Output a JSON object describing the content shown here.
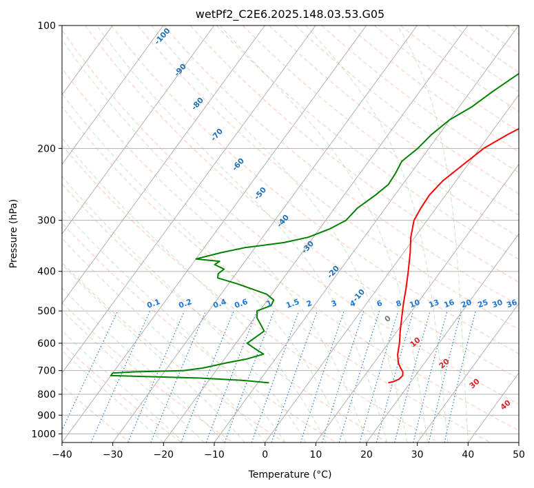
{
  "chart_data": {
    "type": "line",
    "subtype": "skew-t log-p diagram",
    "title": "wetPf2_C2E6.2025.148.03.53.G05",
    "xlabel": "Temperature (°C)",
    "ylabel": "Pressure (hPa)",
    "xlim": [
      -40,
      50
    ],
    "ylim": [
      1050,
      100
    ],
    "yscale": "log",
    "x_ticks": [
      -40,
      -30,
      -20,
      -10,
      0,
      10,
      20,
      30,
      40,
      50
    ],
    "y_ticks": [
      100,
      200,
      300,
      400,
      500,
      600,
      700,
      800,
      900,
      1000
    ],
    "grid": true,
    "colors": {
      "temperature": "#ff0000",
      "dewpoint": "#008000",
      "dry_adiabat": "#ff9f80",
      "moist_adiabat": "#a0d0a0",
      "mixing_ratio": "#1f77d4",
      "isotherm_label": "#1f6fb4",
      "theta_e_label": "#d62728",
      "isotherm": "#b0b0b0"
    },
    "isotherm_labels": [
      "-100",
      "-90",
      "-80",
      "-70",
      "-60",
      "-50",
      "-40",
      "-30",
      "-20",
      "-10"
    ],
    "mixing_ratio_labels": [
      "0.1",
      "0.2",
      "0.4",
      "0.6",
      "1",
      "1.5",
      "2",
      "3",
      "4",
      "6",
      "8",
      "10",
      "13",
      "16",
      "20",
      "25",
      "30",
      "36"
    ],
    "theta_e_labels": [
      "0",
      "10",
      "20",
      "30",
      "40"
    ],
    "series": [
      {
        "role": "temperature",
        "points": [
          {
            "p": 750,
            "t": 15.7
          },
          {
            "p": 745,
            "t": 16.5
          },
          {
            "p": 735,
            "t": 17.3
          },
          {
            "p": 720,
            "t": 17.5
          },
          {
            "p": 705,
            "t": 17.0
          },
          {
            "p": 690,
            "t": 16.0
          },
          {
            "p": 670,
            "t": 14.8
          },
          {
            "p": 640,
            "t": 13.5
          },
          {
            "p": 600,
            "t": 12.2
          },
          {
            "p": 560,
            "t": 10.6
          },
          {
            "p": 520,
            "t": 9.0
          },
          {
            "p": 480,
            "t": 7.3
          },
          {
            "p": 440,
            "t": 5.6
          },
          {
            "p": 400,
            "t": 3.6
          },
          {
            "p": 360,
            "t": 1.3
          },
          {
            "p": 330,
            "t": -0.8
          },
          {
            "p": 300,
            "t": -2.6
          },
          {
            "p": 280,
            "t": -3.0
          },
          {
            "p": 260,
            "t": -3.2
          },
          {
            "p": 240,
            "t": -2.6
          },
          {
            "p": 220,
            "t": -1.0
          },
          {
            "p": 200,
            "t": 0.8
          },
          {
            "p": 185,
            "t": 3.5
          },
          {
            "p": 170,
            "t": 7.0
          },
          {
            "p": 155,
            "t": 9.2
          },
          {
            "p": 140,
            "t": 10.4
          },
          {
            "p": 125,
            "t": 12.5
          },
          {
            "p": 112,
            "t": 14.6
          },
          {
            "p": 106,
            "t": 16.6
          },
          {
            "p": 100,
            "t": 19.0
          }
        ]
      },
      {
        "role": "dewpoint",
        "points": [
          {
            "p": 750,
            "t": -7.8
          },
          {
            "p": 740,
            "t": -13.0
          },
          {
            "p": 730,
            "t": -22.0
          },
          {
            "p": 720,
            "t": -40.0
          },
          {
            "p": 710,
            "t": -40.0
          },
          {
            "p": 705,
            "t": -36.0
          },
          {
            "p": 700,
            "t": -26.5
          },
          {
            "p": 690,
            "t": -23.0
          },
          {
            "p": 670,
            "t": -19.0
          },
          {
            "p": 655,
            "t": -15.5
          },
          {
            "p": 638,
            "t": -13.0
          },
          {
            "p": 620,
            "t": -15.3
          },
          {
            "p": 600,
            "t": -17.8
          },
          {
            "p": 580,
            "t": -17.0
          },
          {
            "p": 560,
            "t": -16.2
          },
          {
            "p": 540,
            "t": -17.8
          },
          {
            "p": 520,
            "t": -19.5
          },
          {
            "p": 500,
            "t": -20.5
          },
          {
            "p": 485,
            "t": -18.5
          },
          {
            "p": 470,
            "t": -18.8
          },
          {
            "p": 455,
            "t": -21.0
          },
          {
            "p": 430,
            "t": -28.0
          },
          {
            "p": 415,
            "t": -33.0
          },
          {
            "p": 405,
            "t": -33.5
          },
          {
            "p": 395,
            "t": -33.0
          },
          {
            "p": 385,
            "t": -35.5
          },
          {
            "p": 378,
            "t": -35.0
          },
          {
            "p": 373,
            "t": -40.0
          },
          {
            "p": 360,
            "t": -36.0
          },
          {
            "p": 350,
            "t": -32.0
          },
          {
            "p": 340,
            "t": -25.0
          },
          {
            "p": 330,
            "t": -21.0
          },
          {
            "p": 315,
            "t": -18.0
          },
          {
            "p": 300,
            "t": -16.0
          },
          {
            "p": 280,
            "t": -15.5
          },
          {
            "p": 260,
            "t": -13.8
          },
          {
            "p": 245,
            "t": -12.8
          },
          {
            "p": 230,
            "t": -13.0
          },
          {
            "p": 215,
            "t": -13.5
          },
          {
            "p": 200,
            "t": -12.2
          },
          {
            "p": 185,
            "t": -11.5
          },
          {
            "p": 170,
            "t": -10.0
          },
          {
            "p": 158,
            "t": -7.5
          },
          {
            "p": 145,
            "t": -5.6
          },
          {
            "p": 130,
            "t": -2.8
          },
          {
            "p": 118,
            "t": -0.9
          },
          {
            "p": 110,
            "t": 0.6
          },
          {
            "p": 100,
            "t": 1.5
          }
        ]
      }
    ]
  }
}
